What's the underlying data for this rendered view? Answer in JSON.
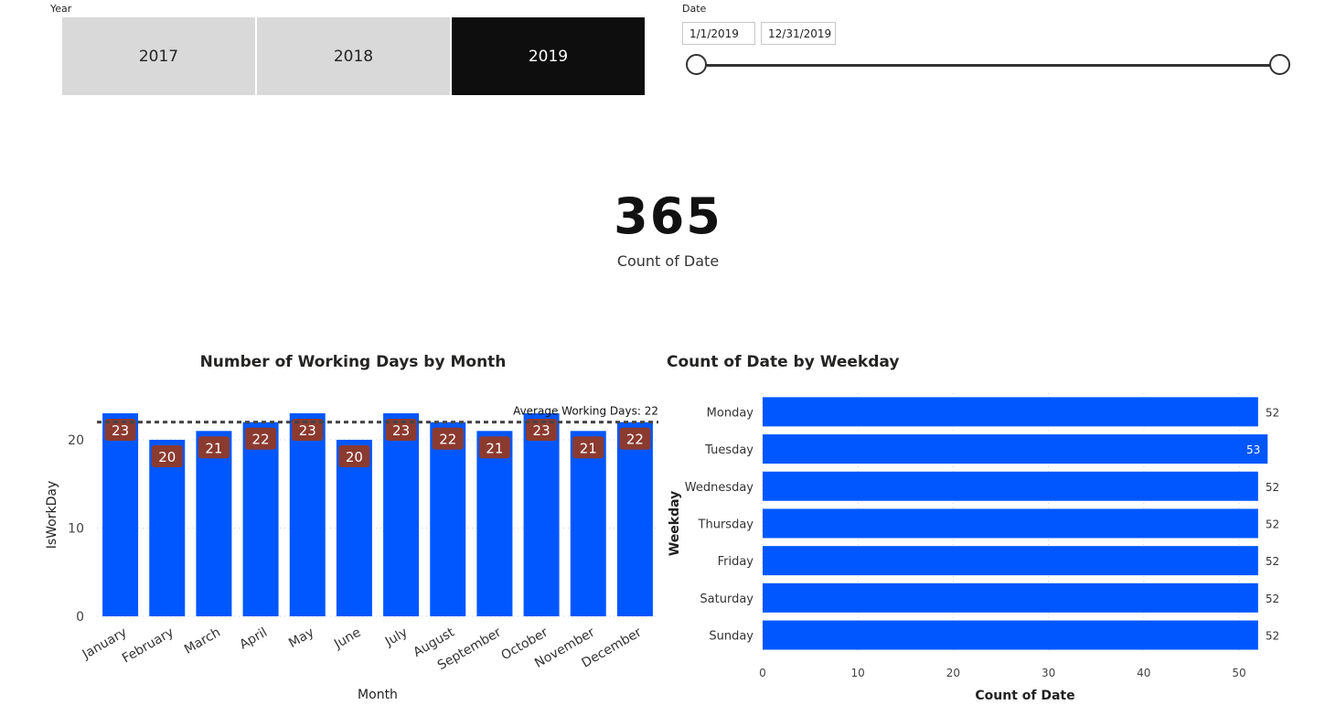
{
  "year_slicer": {
    "title": "Year",
    "options": [
      "2017",
      "2018",
      "2019"
    ],
    "selected": "2019"
  },
  "date_slicer": {
    "title": "Date",
    "start": "1/1/2019",
    "end": "12/31/2019"
  },
  "kpi": {
    "value": "365",
    "label": "Count of Date"
  },
  "colors": {
    "bar": "#0057ff",
    "label_bg": "#8b3a2f",
    "selected_tile": "#0e0e0e",
    "tile": "#d9d9d9"
  },
  "chart_data": [
    {
      "type": "bar",
      "title": "Number of Working Days by Month",
      "xlabel": "Month",
      "ylabel": "IsWorkDay",
      "categories": [
        "January",
        "February",
        "March",
        "April",
        "May",
        "June",
        "July",
        "August",
        "September",
        "October",
        "November",
        "December"
      ],
      "values": [
        23,
        20,
        21,
        22,
        23,
        20,
        23,
        22,
        21,
        23,
        21,
        22
      ],
      "yticks": [
        0,
        10,
        20
      ],
      "ylim": [
        0,
        23
      ],
      "reference_line": {
        "label": "Average Working Days: 22",
        "value": 22
      },
      "grid": true
    },
    {
      "type": "bar",
      "orientation": "horizontal",
      "title": "Count of Date by Weekday",
      "xlabel": "Count of Date",
      "ylabel": "Weekday",
      "categories": [
        "Monday",
        "Tuesday",
        "Wednesday",
        "Thursday",
        "Friday",
        "Saturday",
        "Sunday"
      ],
      "values": [
        52,
        53,
        52,
        52,
        52,
        52,
        52
      ],
      "xticks": [
        0,
        10,
        20,
        30,
        40,
        50
      ],
      "xlim": [
        0,
        53
      ],
      "grid": true
    }
  ]
}
